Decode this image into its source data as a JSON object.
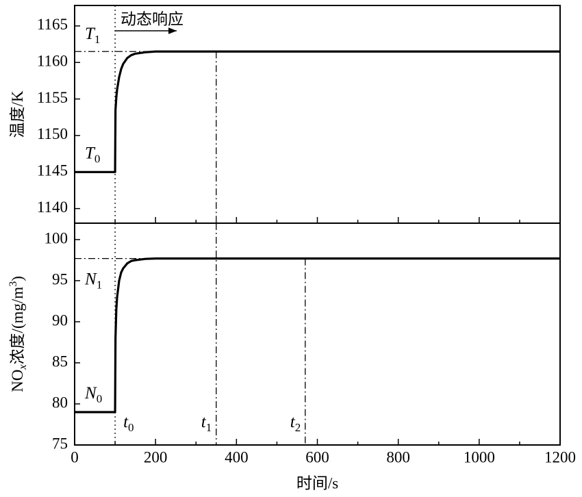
{
  "chart_data": [
    {
      "type": "line",
      "ylabel_parts": [
        {
          "text": "温度/K"
        }
      ],
      "x": [
        0,
        100,
        100,
        101,
        103,
        105,
        110,
        115,
        120,
        130,
        140,
        150,
        175,
        200,
        250,
        300,
        400,
        600,
        800,
        1000,
        1200
      ],
      "values": [
        1145,
        1145,
        1145,
        1153.5,
        1155.2,
        1156.3,
        1158,
        1159.1,
        1159.8,
        1160.6,
        1161,
        1161.2,
        1161.4,
        1161.5,
        1161.5,
        1161.5,
        1161.5,
        1161.5,
        1161.5,
        1161.5,
        1161.5
      ],
      "color": "#000000",
      "xlim": [
        0,
        1200
      ],
      "xticks": [
        0,
        200,
        400,
        600,
        800,
        1000,
        1200
      ],
      "xminor": [
        100,
        300,
        500,
        700,
        900,
        1100
      ],
      "show_xtick_labels": false,
      "ylim": [
        1138,
        1167.8
      ],
      "yticks": [
        1140,
        1145,
        1150,
        1155,
        1160,
        1165
      ],
      "hlines": [
        {
          "value": 1161.5,
          "label": "T",
          "sub": "1",
          "side": "above",
          "style": "dashdot"
        }
      ],
      "level_labels": [
        {
          "value": 1145,
          "label": "T",
          "sub": "0",
          "side": "above"
        }
      ],
      "vlines": [
        {
          "value": 100,
          "style": "dotted"
        },
        {
          "value": 350,
          "style": "dashdot",
          "ymax": 1161.5
        }
      ],
      "annotation": "动态响应"
    },
    {
      "type": "line",
      "ylabel_parts": [
        {
          "text": "NO"
        },
        {
          "text": "x",
          "sub": true
        },
        {
          "text": "浓度/(mg/m"
        },
        {
          "text": "3",
          "sup": true
        },
        {
          "text": ")"
        }
      ],
      "x": [
        0,
        100,
        100,
        101,
        103,
        105,
        110,
        115,
        120,
        130,
        140,
        150,
        175,
        200,
        250,
        300,
        400,
        600,
        800,
        1000,
        1200
      ],
      "values": [
        79,
        79,
        79,
        88,
        91.5,
        93,
        95,
        96,
        96.5,
        97.1,
        97.4,
        97.5,
        97.65,
        97.7,
        97.7,
        97.7,
        97.7,
        97.7,
        97.7,
        97.7,
        97.7
      ],
      "color": "#000000",
      "xlim": [
        0,
        1200
      ],
      "xticks": [
        0,
        200,
        400,
        600,
        800,
        1000,
        1200
      ],
      "xminor": [
        100,
        300,
        500,
        700,
        900,
        1100
      ],
      "show_xtick_labels": true,
      "xlabel": "时间/s",
      "ylim": [
        75,
        102
      ],
      "yticks": [
        75,
        80,
        85,
        90,
        95,
        100
      ],
      "hlines": [
        {
          "value": 97.7,
          "label": "N",
          "sub": "1",
          "side": "below",
          "style": "dashdot"
        }
      ],
      "level_labels": [
        {
          "value": 79,
          "label": "N",
          "sub": "0",
          "side": "above"
        }
      ],
      "vlines": [
        {
          "value": 100,
          "style": "dotted",
          "label": "t",
          "sub": "0"
        },
        {
          "value": 350,
          "style": "dashdot",
          "label": "t",
          "sub": "1"
        },
        {
          "value": 570,
          "style": "dashdot",
          "ymax": 97.7,
          "label": "t",
          "sub": "2"
        }
      ]
    }
  ]
}
